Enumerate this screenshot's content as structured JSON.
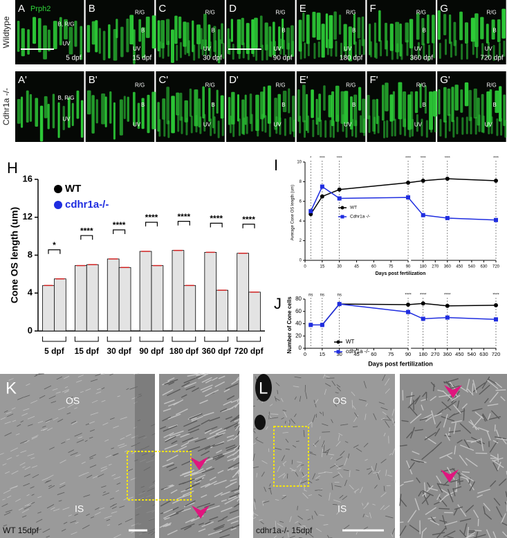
{
  "micrographs": {
    "stain": "Prph2",
    "rows": [
      {
        "label": "Wildtype",
        "panels": [
          {
            "letter": "A",
            "stage": "5 dpf",
            "layers": [
              "B, R/G",
              "UV"
            ]
          },
          {
            "letter": "B",
            "stage": "15 dpf",
            "layers": [
              "R/G",
              "B",
              "UV"
            ]
          },
          {
            "letter": "C",
            "stage": "30 dpf",
            "layers": [
              "R/G",
              "B",
              "UV"
            ]
          },
          {
            "letter": "D",
            "stage": "90 dpf",
            "layers": [
              "R/G",
              "B",
              "UV"
            ]
          },
          {
            "letter": "E",
            "stage": "180 dpf",
            "layers": [
              "R/G",
              "B",
              "UV"
            ]
          },
          {
            "letter": "F",
            "stage": "360 dpf",
            "layers": [
              "R/G",
              "B",
              "UV"
            ]
          },
          {
            "letter": "G",
            "stage": "720 dpf",
            "layers": [
              "R/G",
              "B",
              "UV"
            ]
          }
        ]
      },
      {
        "label": "Cdhr1a -/-",
        "panels": [
          {
            "letter": "A'",
            "layers": [
              "B, R/G",
              "UV"
            ]
          },
          {
            "letter": "B'",
            "layers": [
              "R/G",
              "B",
              "UV"
            ]
          },
          {
            "letter": "C'",
            "layers": [
              "R/G",
              "B",
              "UV"
            ]
          },
          {
            "letter": "D'",
            "layers": [
              "R/G",
              "B",
              "UV"
            ]
          },
          {
            "letter": "E'",
            "layers": [
              "R/G",
              "B",
              "UV"
            ]
          },
          {
            "letter": "F'",
            "layers": [
              "R/G",
              "B",
              "UV"
            ]
          },
          {
            "letter": "G'",
            "layers": [
              "R/G",
              "B",
              "UV"
            ]
          }
        ]
      }
    ]
  },
  "chart_data": [
    {
      "type": "bar",
      "panel": "H",
      "y_label": "Cone OS length (um)",
      "categories": [
        "5 dpf",
        "15 dpf",
        "30 dpf",
        "90 dpf",
        "180 dpf",
        "360 dpf",
        "720 dpf"
      ],
      "series": [
        {
          "name": "WT",
          "color": "#000000",
          "values": [
            4.8,
            6.9,
            7.6,
            8.4,
            8.5,
            8.3,
            8.2
          ]
        },
        {
          "name": "cdhr1a-/-",
          "color": "#1f2de0",
          "values": [
            5.5,
            7.0,
            6.7,
            6.9,
            4.8,
            4.3,
            4.1
          ]
        }
      ],
      "bar_color": "#e3e3e3",
      "ylim": [
        0,
        16
      ],
      "yticks": [
        0,
        4,
        8,
        12,
        16
      ],
      "significance": [
        "*",
        "****",
        "****",
        "****",
        "****",
        "****",
        "****"
      ]
    },
    {
      "type": "line",
      "panel": "I",
      "y_label": "Average Cone OS length (um)",
      "x_label": "Days post fertilization",
      "x": [
        5,
        15,
        30,
        90,
        180,
        360,
        720
      ],
      "series": [
        {
          "name": "WT",
          "color": "#000000",
          "marker": "circle",
          "values": [
            4.7,
            6.5,
            7.2,
            7.9,
            8.1,
            8.3,
            8.1
          ]
        },
        {
          "name": "Cdhr1a -/-",
          "color": "#1f2de0",
          "marker": "square",
          "values": [
            5.0,
            7.5,
            6.3,
            6.4,
            4.6,
            4.3,
            4.1
          ]
        }
      ],
      "xlim": [
        0,
        720
      ],
      "xticks": [
        0,
        15,
        30,
        45,
        60,
        75,
        90,
        180,
        270,
        360,
        450,
        540,
        630,
        720
      ],
      "axis_break": 90,
      "ylim": [
        0,
        10
      ],
      "yticks": [
        0,
        2,
        4,
        6,
        8,
        10
      ],
      "annotations": [
        {
          "x": 5,
          "text": "*"
        },
        {
          "x": 15,
          "text": "****"
        },
        {
          "x": 30,
          "text": "****"
        },
        {
          "x": 90,
          "text": "****"
        },
        {
          "x": 180,
          "text": "****"
        },
        {
          "x": 360,
          "text": "****"
        },
        {
          "x": 720,
          "text": "****"
        }
      ]
    },
    {
      "type": "line",
      "panel": "J",
      "y_label": "Number of Cone cells",
      "x_label": "Days post fertilization",
      "x": [
        5,
        15,
        30,
        90,
        180,
        360,
        720
      ],
      "series": [
        {
          "name": "WT",
          "color": "#000000",
          "marker": "circle",
          "values": [
            38,
            38,
            72,
            71,
            73,
            69,
            70
          ]
        },
        {
          "name": "cdhr1a -/-",
          "color": "#1f2de0",
          "marker": "square",
          "values": [
            38,
            38,
            72,
            59,
            48,
            50,
            47
          ]
        }
      ],
      "xlim": [
        0,
        720
      ],
      "xticks": [
        0,
        15,
        30,
        45,
        60,
        75,
        90,
        180,
        270,
        360,
        450,
        540,
        630,
        720
      ],
      "axis_break": 90,
      "ylim": [
        0,
        80
      ],
      "yticks": [
        0,
        20,
        40,
        60,
        80
      ],
      "annotations": [
        {
          "x": 5,
          "text": "ns"
        },
        {
          "x": 15,
          "text": "ns"
        },
        {
          "x": 30,
          "text": "ns"
        },
        {
          "x": 90,
          "text": "****"
        },
        {
          "x": 180,
          "text": "****"
        },
        {
          "x": 360,
          "text": "****"
        },
        {
          "x": 720,
          "text": "****"
        }
      ]
    }
  ],
  "em": {
    "panels": [
      {
        "letter": "K",
        "os": "OS",
        "is": "IS",
        "caption": "WT 15dpf"
      },
      {
        "letter": "L",
        "os": "OS",
        "is": "IS",
        "caption": "cdhr1a-/- 15dpf"
      }
    ]
  }
}
